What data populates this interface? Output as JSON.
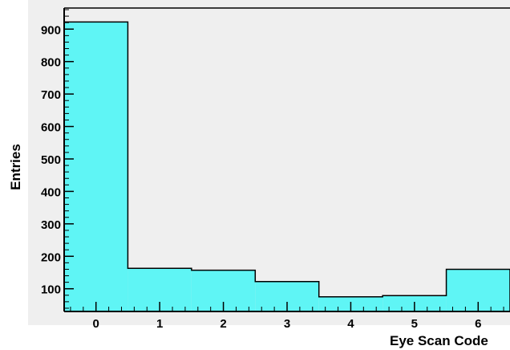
{
  "chart_data": {
    "type": "bar",
    "xlabel": "Eye Scan Code",
    "ylabel": "Entries",
    "categories": [
      "0",
      "1",
      "2",
      "3",
      "4",
      "5",
      "6"
    ],
    "values": [
      922,
      163,
      157,
      122,
      75,
      79,
      160
    ],
    "yticks": [
      "100",
      "200",
      "300",
      "400",
      "500",
      "600",
      "700",
      "800",
      "900"
    ],
    "ylim": [
      30,
      965
    ],
    "xlim": [
      -0.5,
      6.5
    ],
    "grid": false,
    "legend": "none",
    "colors": {
      "fill": "#5ff5f5",
      "frame_bg": "#efefef",
      "line": "#000000"
    }
  }
}
